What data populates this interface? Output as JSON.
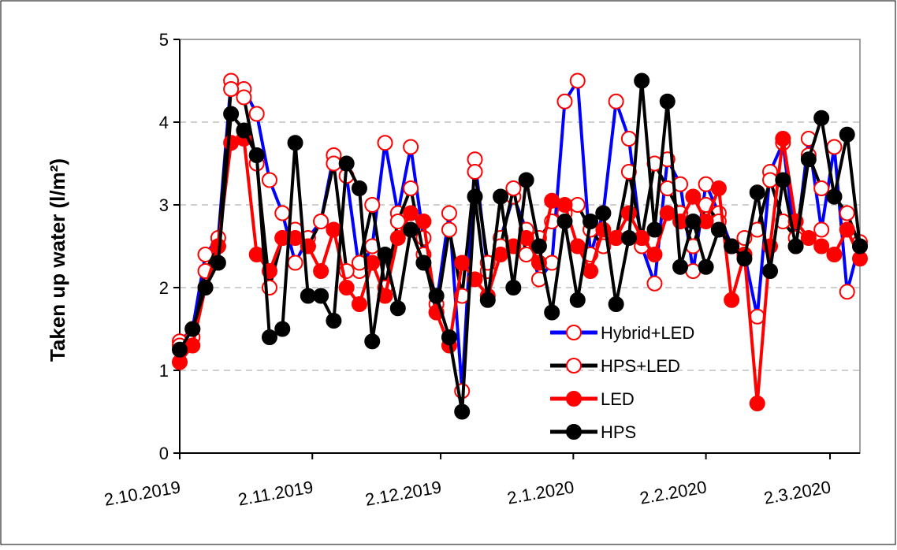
{
  "chart_data": {
    "type": "line",
    "y_label": "Taken up water (l/m²)",
    "x": [
      "2019-10-02",
      "2019-10-05",
      "2019-10-08",
      "2019-10-11",
      "2019-10-14",
      "2019-10-17",
      "2019-10-20",
      "2019-10-23",
      "2019-10-26",
      "2019-10-29",
      "2019-11-01",
      "2019-11-04",
      "2019-11-07",
      "2019-11-10",
      "2019-11-13",
      "2019-11-16",
      "2019-11-19",
      "2019-11-22",
      "2019-11-25",
      "2019-11-28",
      "2019-12-01",
      "2019-12-04",
      "2019-12-07",
      "2019-12-10",
      "2019-12-13",
      "2019-12-16",
      "2019-12-19",
      "2019-12-22",
      "2019-12-25",
      "2019-12-28",
      "2019-12-31",
      "2020-01-03",
      "2020-01-06",
      "2020-01-09",
      "2020-01-12",
      "2020-01-15",
      "2020-01-18",
      "2020-01-21",
      "2020-01-24",
      "2020-01-27",
      "2020-01-30",
      "2020-02-02",
      "2020-02-05",
      "2020-02-08",
      "2020-02-11",
      "2020-02-14",
      "2020-02-17",
      "2020-02-20",
      "2020-02-23",
      "2020-02-26",
      "2020-02-29",
      "2020-03-03",
      "2020-03-06",
      "2020-03-09"
    ],
    "xlim": [
      "2019-10-02",
      "2020-03-09"
    ],
    "xticks": [
      {
        "value": "2019-10-02",
        "label": "2.10.2019"
      },
      {
        "value": "2019-11-02",
        "label": "2.11.2019"
      },
      {
        "value": "2019-12-02",
        "label": "2.12.2019"
      },
      {
        "value": "2020-01-02",
        "label": "2.1.2020"
      },
      {
        "value": "2020-02-02",
        "label": "2.2.2020"
      },
      {
        "value": "2020-03-02",
        "label": "2.3.2020"
      }
    ],
    "ylim": [
      0,
      5
    ],
    "yticks": [
      0,
      1,
      2,
      3,
      4,
      5
    ],
    "grid": true,
    "legend": "lower-right",
    "series": [
      {
        "name": "Hybrid+LED",
        "color": "#0000ff",
        "marker_edge": "#ff0000",
        "marker_fill": "#ffffff",
        "values": [
          1.35,
          1.5,
          2.4,
          2.6,
          4.5,
          4.4,
          4.1,
          3.3,
          2.9,
          2.3,
          2.6,
          2.8,
          3.6,
          3.35,
          2.2,
          2.5,
          3.75,
          2.9,
          3.7,
          2.6,
          1.8,
          2.9,
          0.75,
          3.55,
          2.2,
          2.6,
          3.1,
          2.7,
          2.1,
          2.3,
          4.25,
          4.5,
          2.4,
          2.9,
          4.25,
          3.8,
          2.5,
          2.05,
          3.55,
          3.25,
          2.2,
          3.25,
          2.9,
          2.5,
          2.4,
          1.65,
          3.4,
          3.75,
          2.5,
          3.8,
          2.7,
          3.7,
          1.95,
          2.55
        ]
      },
      {
        "name": "HPS+LED",
        "color": "#000000",
        "marker_edge": "#ff0000",
        "marker_fill": "#ffffff",
        "values": [
          1.3,
          1.4,
          2.2,
          2.5,
          4.4,
          4.3,
          3.5,
          2.0,
          2.6,
          2.7,
          2.5,
          2.8,
          3.5,
          2.2,
          2.3,
          3.0,
          2.0,
          2.8,
          3.2,
          2.4,
          1.7,
          2.7,
          1.9,
          3.4,
          2.3,
          2.5,
          3.2,
          2.4,
          2.6,
          2.8,
          2.9,
          3.0,
          2.7,
          2.5,
          2.6,
          3.4,
          2.6,
          3.5,
          3.2,
          2.9,
          2.5,
          3.0,
          2.8,
          2.5,
          2.6,
          2.7,
          3.3,
          2.8,
          2.6,
          3.6,
          3.2,
          3.1,
          2.9,
          2.5
        ]
      },
      {
        "name": "LED",
        "color": "#ff0000",
        "marker_edge": "#ff0000",
        "marker_fill": "#ff0000",
        "values": [
          1.1,
          1.3,
          2.0,
          2.5,
          3.75,
          3.8,
          2.4,
          2.2,
          2.6,
          2.6,
          2.5,
          2.2,
          2.7,
          2.0,
          1.8,
          2.3,
          1.9,
          2.6,
          2.9,
          2.8,
          1.7,
          1.3,
          2.3,
          2.1,
          1.9,
          2.4,
          2.5,
          2.6,
          2.3,
          3.05,
          3.0,
          2.5,
          2.2,
          2.7,
          2.6,
          2.9,
          2.6,
          2.4,
          2.9,
          2.8,
          3.1,
          2.8,
          3.2,
          1.85,
          2.4,
          0.6,
          2.5,
          3.8,
          2.8,
          2.6,
          2.5,
          2.4,
          2.7,
          2.35
        ]
      },
      {
        "name": "HPS",
        "color": "#000000",
        "marker_edge": "#000000",
        "marker_fill": "#000000",
        "values": [
          1.25,
          1.5,
          2.0,
          2.3,
          4.1,
          3.9,
          3.6,
          1.4,
          1.5,
          3.75,
          1.9,
          1.9,
          1.6,
          3.5,
          3.2,
          1.35,
          2.4,
          1.75,
          2.7,
          2.3,
          1.9,
          1.4,
          0.5,
          3.1,
          1.85,
          3.1,
          2.0,
          3.3,
          2.5,
          1.7,
          2.8,
          1.85,
          2.8,
          2.9,
          1.8,
          2.6,
          4.5,
          2.7,
          4.25,
          2.25,
          2.8,
          2.25,
          2.7,
          2.5,
          2.35,
          3.15,
          2.2,
          3.3,
          2.5,
          3.55,
          4.05,
          3.1,
          3.85,
          2.5
        ]
      }
    ]
  }
}
